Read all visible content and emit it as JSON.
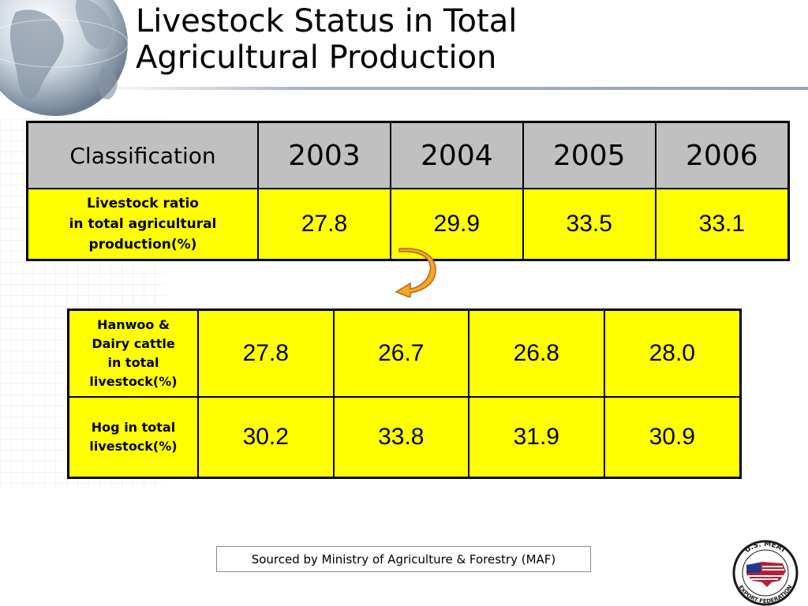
{
  "title": {
    "line1": "Livestock Status in Total",
    "line2": "Agricultural Production"
  },
  "table1": {
    "header": {
      "classification": "Classification",
      "years": [
        "2003",
        "2004",
        "2005",
        "2006"
      ]
    },
    "row": {
      "label_lines": [
        "Livestock ratio",
        "in total agricultural",
        "production(%)"
      ],
      "values": [
        "27.8",
        "29.9",
        "33.5",
        "33.1"
      ]
    }
  },
  "table2": {
    "rows": [
      {
        "label_lines": [
          "Hanwoo &",
          "Dairy cattle",
          "in total",
          "livestock(%)"
        ],
        "values": [
          "27.8",
          "26.7",
          "26.8",
          "28.0"
        ]
      },
      {
        "label_lines": [
          "Hog in total",
          "livestock(%)"
        ],
        "values": [
          "30.2",
          "33.8",
          "31.9",
          "30.9"
        ]
      }
    ]
  },
  "source": "Sourced by Ministry of Agriculture & Forestry (MAF)",
  "logo": {
    "top_text": "U.S. MEAT",
    "bottom_text": "EXPORT FEDERATION"
  },
  "colors": {
    "cell_yellow": "#ffff00",
    "header_gray": "#c0c0c0",
    "arrow_orange": "#f5a623"
  },
  "icons": [
    "globe-icon",
    "curved-arrow-icon",
    "usmef-logo-icon"
  ]
}
